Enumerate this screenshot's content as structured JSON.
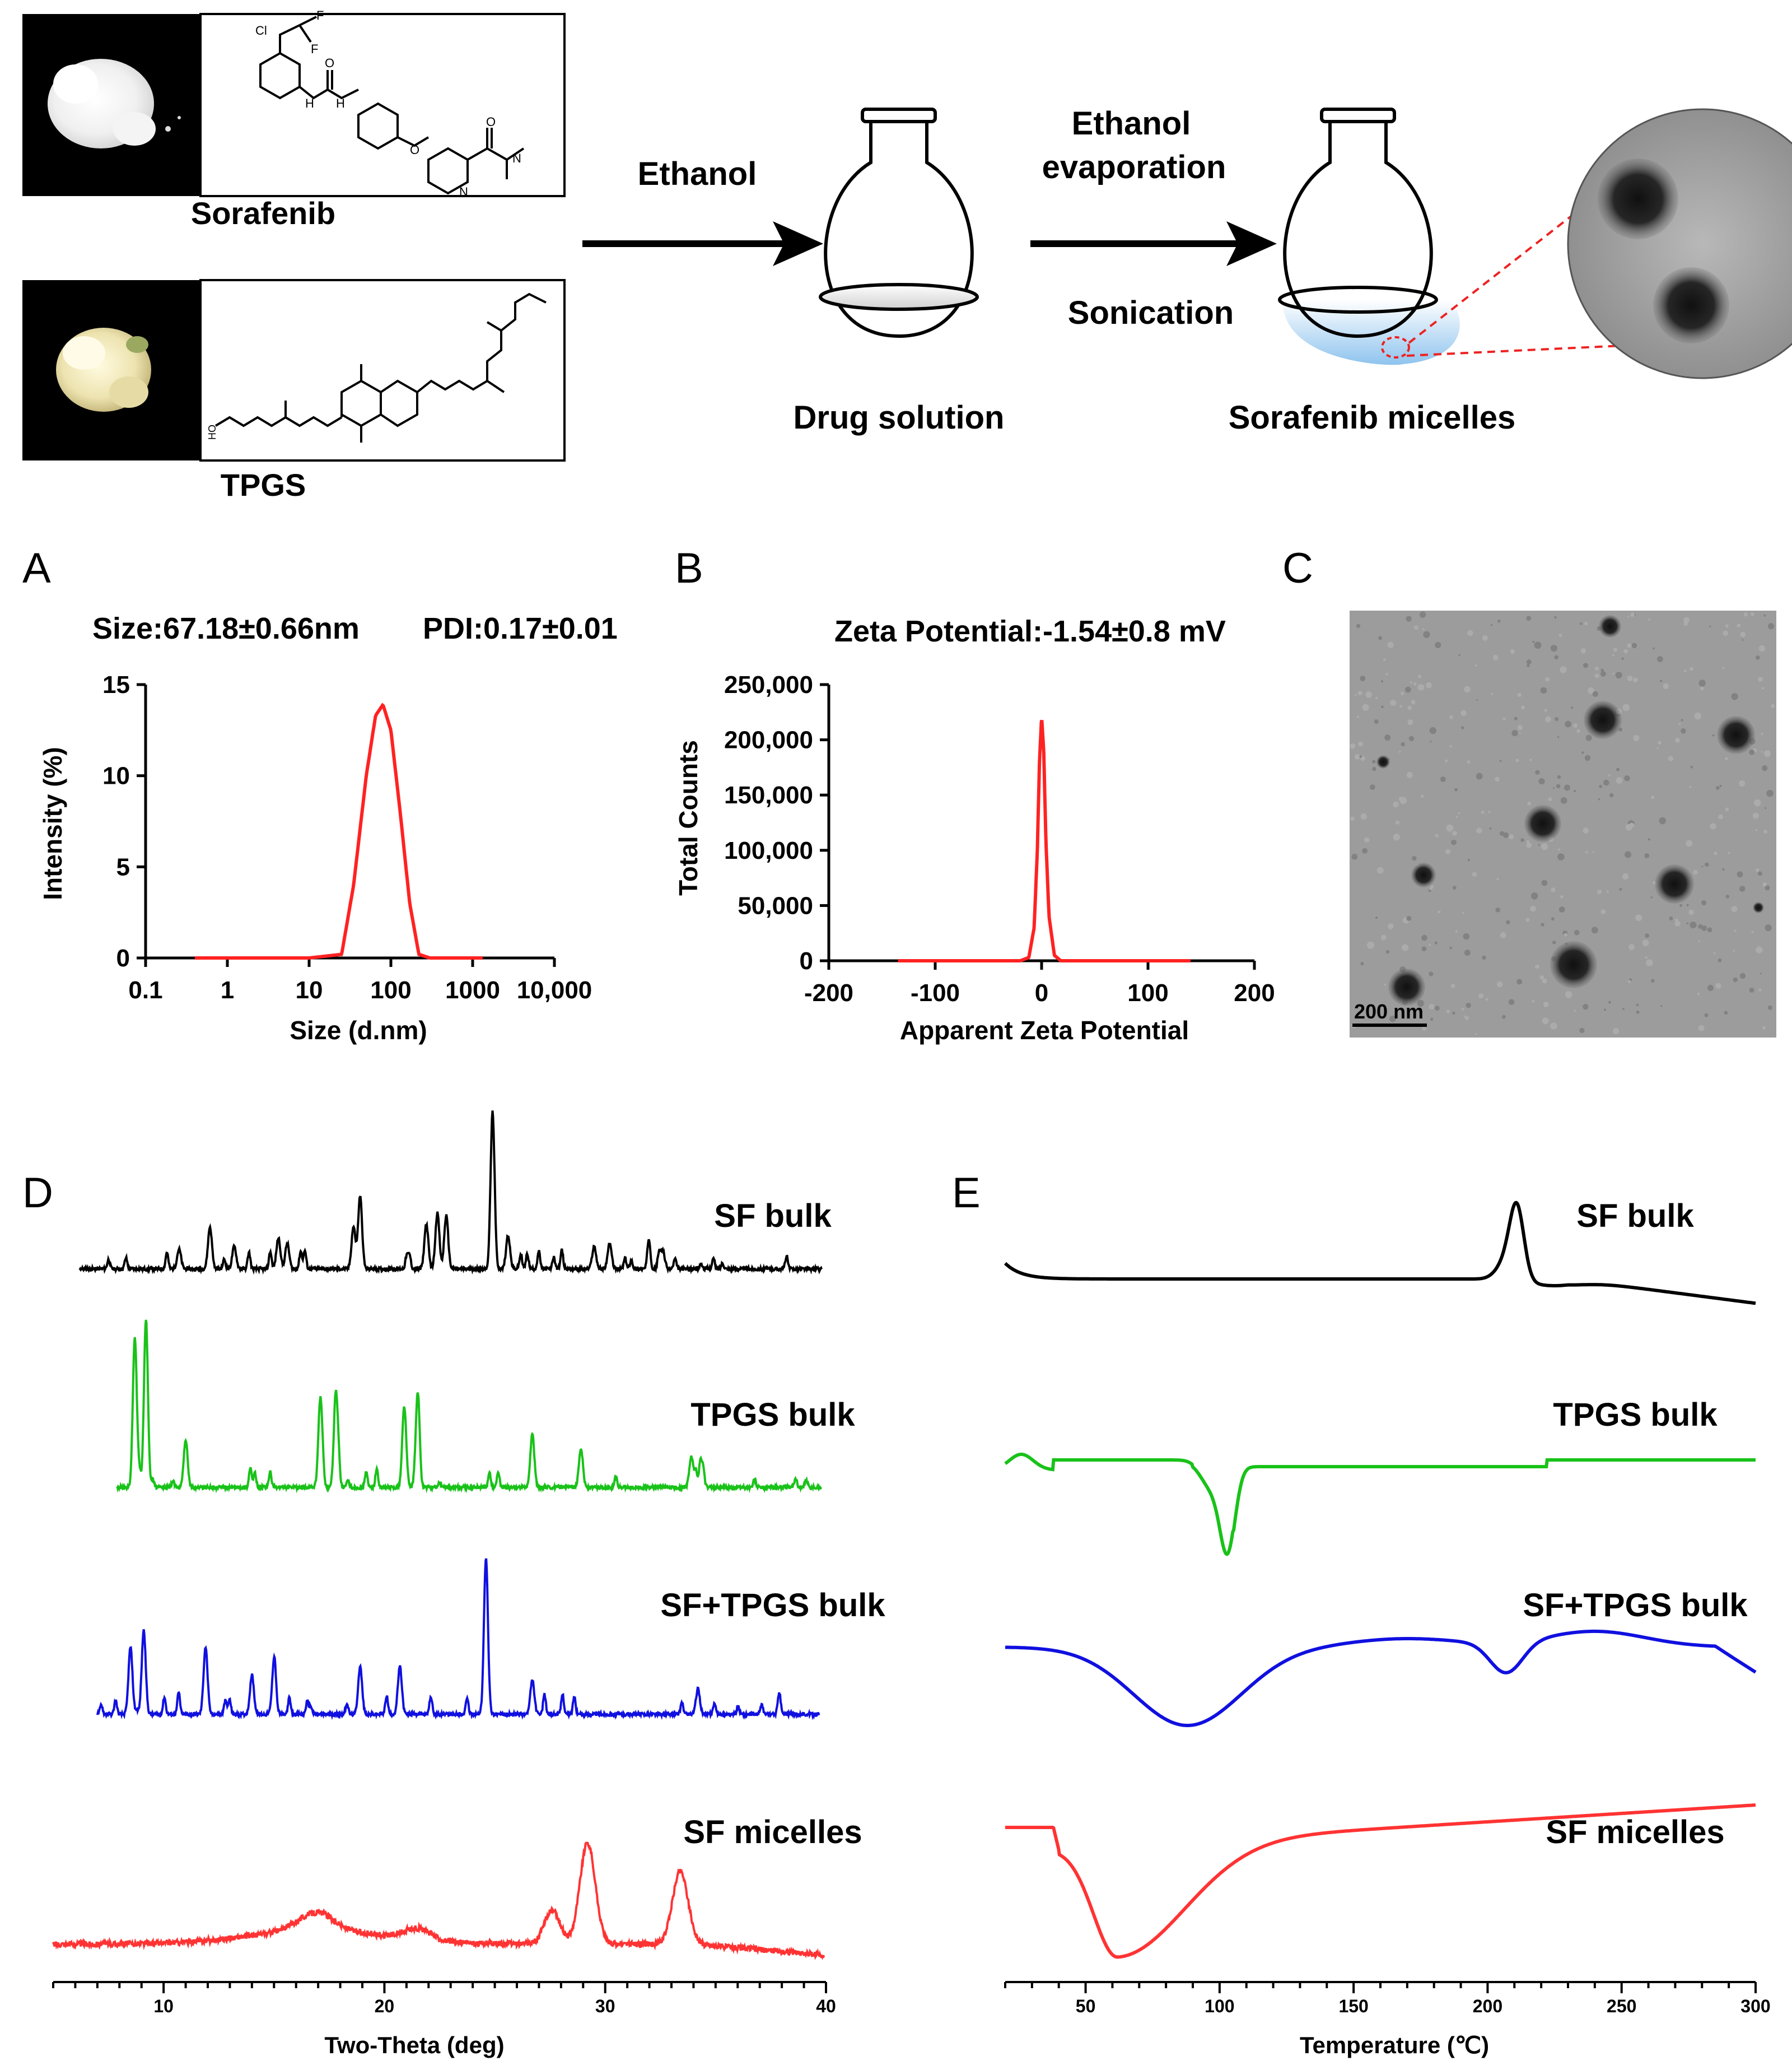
{
  "scheme": {
    "sorafenib_label": "Sorafenib",
    "tpgs_label": "TPGS",
    "arrow1_label": "Ethanol",
    "arrow2_label_line1": "Ethanol",
    "arrow2_label_line2": "evaporation",
    "arrow2_label_below": "Sonication",
    "flask1_label": "Drug solution",
    "flask2_label": "Sorafenib micelles",
    "struct_cl": "Cl",
    "struct_f": "F",
    "struct_h": "H",
    "struct_n": "N",
    "struct_o": "O",
    "struct_ho": "HO"
  },
  "panels": {
    "A": "A",
    "B": "B",
    "C": "C",
    "D": "D",
    "E": "E"
  },
  "panelA": {
    "title_size": "Size:67.18±0.66nm",
    "title_pdi": "PDI:0.17±0.01",
    "xlabel": "Size (d.nm)",
    "ylabel": "Intensity (%)",
    "xticks": [
      "0.1",
      "1",
      "10",
      "100",
      "1000",
      "10,000"
    ],
    "yticks": [
      "0",
      "5",
      "10",
      "15"
    ]
  },
  "panelB": {
    "title": "Zeta Potential:-1.54±0.8 mV",
    "xlabel": "Apparent Zeta Potential",
    "ylabel": "Total Counts",
    "xticks": [
      "-200",
      "-100",
      "0",
      "100",
      "200"
    ],
    "yticks": [
      "0",
      "50,000",
      "100,000",
      "150,000",
      "200,000",
      "250,000"
    ]
  },
  "panelC": {
    "scalebar": "200 nm"
  },
  "panelD": {
    "labels": [
      "SF bulk",
      "TPGS bulk",
      "SF+TPGS bulk",
      "SF micelles"
    ],
    "xlabel": "Two-Theta (deg)",
    "xticks": [
      "10",
      "20",
      "30",
      "40"
    ]
  },
  "panelE": {
    "labels": [
      "SF bulk",
      "TPGS bulk",
      "SF+TPGS bulk",
      "SF micelles"
    ],
    "xlabel": "Temperature (℃)",
    "xticks": [
      "50",
      "100",
      "150",
      "200",
      "250",
      "300"
    ]
  },
  "colors": {
    "black": "#000000",
    "green": "#19c219",
    "blue": "#1010e0",
    "red": "#ff3333"
  },
  "chart_data": [
    {
      "type": "line",
      "panel": "A",
      "xscale": "log",
      "xlim": [
        0.1,
        10000
      ],
      "ylim": [
        0,
        15
      ],
      "series": [
        {
          "color": "#ff3333",
          "x": [
            0.4,
            10,
            25,
            35,
            50,
            65,
            80,
            100,
            130,
            170,
            220,
            300,
            1000,
            3000
          ],
          "y": [
            0,
            0,
            0.2,
            4,
            10,
            13.3,
            13.9,
            12.5,
            8,
            3,
            0.2,
            0,
            0,
            0
          ]
        }
      ]
    },
    {
      "type": "line",
      "panel": "B",
      "xlim": [
        -200,
        200
      ],
      "ylim": [
        0,
        250000
      ],
      "series": [
        {
          "color": "#ff3333",
          "x": [
            -135,
            -20,
            -12,
            -7,
            -4,
            -2,
            0,
            2,
            4,
            7,
            12,
            18,
            140
          ],
          "y": [
            0,
            0,
            3000,
            30000,
            100000,
            180000,
            221000,
            190000,
            110000,
            40000,
            5000,
            0,
            0
          ]
        }
      ]
    },
    {
      "type": "line",
      "panel": "D",
      "xlabel": "Two-Theta (deg)",
      "xlim": [
        5,
        40
      ],
      "series": [
        {
          "name": "SF bulk",
          "color": "#000000",
          "peaks_2theta": [
            10.7,
            12.1,
            13.2,
            15.2,
            15.6,
            18.6,
            18.9,
            21.9,
            22.4,
            22.8,
            24.9,
            25.6,
            29.5,
            30.2,
            32.6
          ]
        },
        {
          "name": "TPGS bulk",
          "color": "#19c219",
          "peaks_2theta": [
            8.7,
            9.2,
            11.0,
            17.1,
            17.8,
            20.9,
            21.5,
            26.7,
            28.9,
            33.9
          ]
        },
        {
          "name": "SF+TPGS bulk",
          "color": "#1010e0",
          "peaks_2theta": [
            8.5,
            9.1,
            11.9,
            14.0,
            15.0,
            18.9,
            20.7,
            24.6,
            26.7,
            34.2
          ]
        },
        {
          "name": "SF micelles",
          "color": "#ff3333",
          "peaks_2theta": [
            16.3,
            17.2,
            21.5,
            27.6,
            29.2,
            33.4
          ]
        }
      ]
    },
    {
      "type": "line",
      "panel": "E",
      "xlabel": "Temperature (℃)",
      "xlim": [
        20,
        300
      ],
      "series": [
        {
          "name": "SF bulk",
          "color": "#000000",
          "endotherm_C": [
            211
          ]
        },
        {
          "name": "TPGS bulk",
          "color": "#19c219",
          "endotherm_C": [
            103
          ]
        },
        {
          "name": "SF+TPGS bulk",
          "color": "#1010e0",
          "endotherm_C": [
            88,
            207
          ]
        },
        {
          "name": "SF micelles",
          "color": "#ff3333",
          "endotherm_C": [
            62
          ]
        }
      ]
    }
  ]
}
